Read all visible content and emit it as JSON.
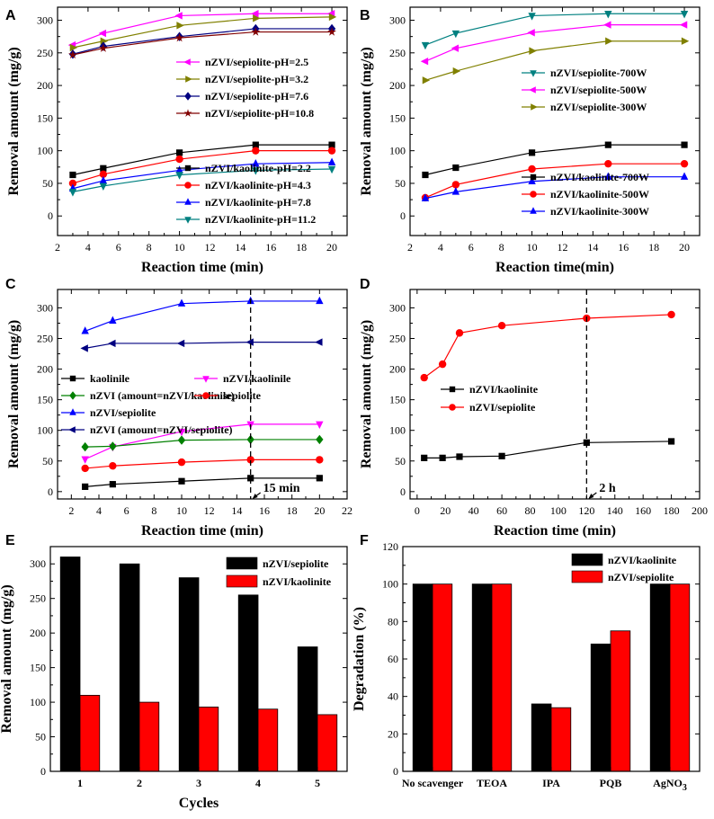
{
  "chart_data": [
    {
      "panel": "A",
      "type": "line",
      "xlabel": "Reaction time (min)",
      "ylabel": "Removal amount (mg/g)",
      "xlim": [
        2,
        21
      ],
      "ylim": [
        -30,
        320
      ],
      "xticks": [
        2,
        4,
        6,
        8,
        10,
        12,
        14,
        16,
        18,
        20
      ],
      "yticks": [
        0,
        50,
        100,
        150,
        200,
        250,
        300
      ],
      "x": [
        3,
        5,
        10,
        15,
        20
      ],
      "series": [
        {
          "name": "nZVI/sepiolite-pH=2.5",
          "color": "#ff00ff",
          "marker": "tri-left",
          "values": [
            262,
            280,
            307,
            310,
            310
          ]
        },
        {
          "name": "nZVI/sepiolite-pH=3.2",
          "color": "#808000",
          "marker": "tri-right",
          "values": [
            258,
            268,
            292,
            303,
            305
          ]
        },
        {
          "name": "nZVI/sepiolite-pH=7.6",
          "color": "#000080",
          "marker": "diamond",
          "values": [
            248,
            260,
            275,
            287,
            287
          ]
        },
        {
          "name": "nZVI/sepiolite-pH=10.8",
          "color": "#800000",
          "marker": "star",
          "values": [
            247,
            257,
            273,
            282,
            282
          ]
        },
        {
          "name": "nZVI/kaolinite-pH=2.2",
          "color": "#000000",
          "marker": "square",
          "values": [
            63,
            73,
            97,
            109,
            109
          ]
        },
        {
          "name": "nZVI/kaolinite-pH=4.3",
          "color": "#ff0000",
          "marker": "circle",
          "values": [
            50,
            64,
            87,
            100,
            100
          ]
        },
        {
          "name": "nZVI/kaolinite-pH=7.8",
          "color": "#0000ff",
          "marker": "tri-up",
          "values": [
            42,
            54,
            70,
            80,
            82
          ]
        },
        {
          "name": "nZVI/kaolinite-pH=11.2",
          "color": "#008080",
          "marker": "tri-down",
          "values": [
            37,
            46,
            63,
            70,
            72
          ]
        }
      ],
      "legend": [
        "top-right",
        "bottom-right"
      ]
    },
    {
      "panel": "B",
      "type": "line",
      "xlabel": "Reaction time(min)",
      "ylabel": "Removal amount (mg/g)",
      "xlim": [
        2,
        21
      ],
      "ylim": [
        -30,
        320
      ],
      "xticks": [
        2,
        4,
        6,
        8,
        10,
        12,
        14,
        16,
        18,
        20
      ],
      "yticks": [
        0,
        50,
        100,
        150,
        200,
        250,
        300
      ],
      "x": [
        3,
        5,
        10,
        15,
        20
      ],
      "series": [
        {
          "name": "nZVI/sepiolite-700W",
          "color": "#008080",
          "marker": "tri-down",
          "values": [
            262,
            280,
            307,
            310,
            310
          ]
        },
        {
          "name": "nZVI/sepiolite-500W",
          "color": "#ff00ff",
          "marker": "tri-left",
          "values": [
            237,
            257,
            281,
            293,
            293
          ]
        },
        {
          "name": "nZVI/sepiolite-300W",
          "color": "#808000",
          "marker": "tri-right",
          "values": [
            208,
            222,
            253,
            268,
            268
          ]
        },
        {
          "name": "nZVI/kaolinite-700W",
          "color": "#000000",
          "marker": "square",
          "values": [
            63,
            74,
            97,
            109,
            109
          ]
        },
        {
          "name": "nZVI/kaolinite-500W",
          "color": "#ff0000",
          "marker": "circle",
          "values": [
            28,
            48,
            72,
            80,
            80
          ]
        },
        {
          "name": "nZVI/kaolinite-300W",
          "color": "#0000ff",
          "marker": "tri-up",
          "values": [
            27,
            37,
            53,
            60,
            60
          ]
        }
      ],
      "legend": [
        "middle-right",
        "bottom-right"
      ]
    },
    {
      "panel": "C",
      "type": "line",
      "xlabel": "Reaction time (min)",
      "ylabel": "Removal amount (mg/g)",
      "xlim": [
        1,
        22
      ],
      "ylim": [
        -12,
        330
      ],
      "xticks": [
        2,
        4,
        6,
        8,
        10,
        12,
        14,
        16,
        18,
        20,
        22
      ],
      "yticks": [
        0,
        50,
        100,
        150,
        200,
        250,
        300
      ],
      "x": [
        3,
        5,
        10,
        15,
        20
      ],
      "series": [
        {
          "name": "kaolinile",
          "color": "#000000",
          "marker": "square",
          "values": [
            8,
            12,
            17,
            22,
            22
          ]
        },
        {
          "name": "nZVI/kaolinile",
          "color": "#ff00ff",
          "marker": "tri-down",
          "values": [
            53,
            73,
            98,
            110,
            110
          ]
        },
        {
          "name": "nZVI (amount=nZVI/kaolinile)",
          "color": "#008000",
          "marker": "diamond",
          "values": [
            73,
            74,
            84,
            85,
            85
          ]
        },
        {
          "name": "sepiolite",
          "color": "#ff0000",
          "marker": "circle",
          "values": [
            38,
            42,
            48,
            52,
            52
          ]
        },
        {
          "name": "nZVI/sepiolite",
          "color": "#0000ff",
          "marker": "tri-up",
          "values": [
            262,
            279,
            307,
            311,
            311
          ]
        },
        {
          "name": "nZVI (amount=nZVI/sepiolite)",
          "color": "#000080",
          "marker": "tri-left",
          "values": [
            234,
            242,
            242,
            244,
            244
          ]
        }
      ],
      "annotation": {
        "text": "15 min",
        "x": 15
      },
      "legend": [
        "middle-left"
      ]
    },
    {
      "panel": "D",
      "type": "line",
      "xlabel": "Reaction time (min)",
      "ylabel": "Removal amount (mg/g)",
      "xlim": [
        -5,
        200
      ],
      "ylim": [
        -12,
        330
      ],
      "xticks": [
        0,
        20,
        40,
        60,
        80,
        100,
        120,
        140,
        160,
        180,
        200
      ],
      "yticks": [
        0,
        50,
        100,
        150,
        200,
        250,
        300
      ],
      "series": [
        {
          "name": "nZVI/kaolinite",
          "color": "#000000",
          "marker": "square",
          "x": [
            5,
            18,
            30,
            60,
            120,
            180
          ],
          "values": [
            55,
            55,
            57,
            58,
            80,
            82
          ]
        },
        {
          "name": "nZVI/sepiolite",
          "color": "#ff0000",
          "marker": "circle",
          "x": [
            5,
            18,
            30,
            60,
            120,
            180
          ],
          "values": [
            186,
            208,
            259,
            271,
            283,
            289
          ]
        }
      ],
      "annotation": {
        "text": "2 h",
        "x": 120
      },
      "legend": [
        "middle-left"
      ]
    },
    {
      "panel": "E",
      "type": "bar",
      "xlabel": "Cycles",
      "ylabel": "Removal amount (mg/g)",
      "categories": [
        "1",
        "2",
        "3",
        "4",
        "5"
      ],
      "ylim": [
        0,
        325
      ],
      "yticks": [
        0,
        50,
        100,
        150,
        200,
        250,
        300
      ],
      "series": [
        {
          "name": "nZVI/sepiolite",
          "color": "#000000",
          "values": [
            310,
            300,
            280,
            255,
            180
          ]
        },
        {
          "name": "nZVI/kaolinite",
          "color": "#ff0000",
          "values": [
            110,
            100,
            93,
            90,
            82
          ]
        }
      ],
      "legend": [
        "top-right"
      ]
    },
    {
      "panel": "F",
      "type": "bar",
      "xlabel": "",
      "ylabel": "Degradation (%)",
      "categories": [
        "No scavenger",
        "TEOA",
        "IPA",
        "PQB",
        "AgNO3"
      ],
      "ylim": [
        0,
        120
      ],
      "yticks": [
        0,
        20,
        40,
        60,
        80,
        100,
        120
      ],
      "series": [
        {
          "name": "nZVI/kaolinite",
          "color": "#000000",
          "values": [
            100,
            100,
            36,
            68,
            100
          ]
        },
        {
          "name": "nZVI/sepiolite",
          "color": "#ff0000",
          "values": [
            100,
            100,
            34,
            75,
            100
          ]
        }
      ],
      "legend": [
        "top-right"
      ]
    }
  ]
}
